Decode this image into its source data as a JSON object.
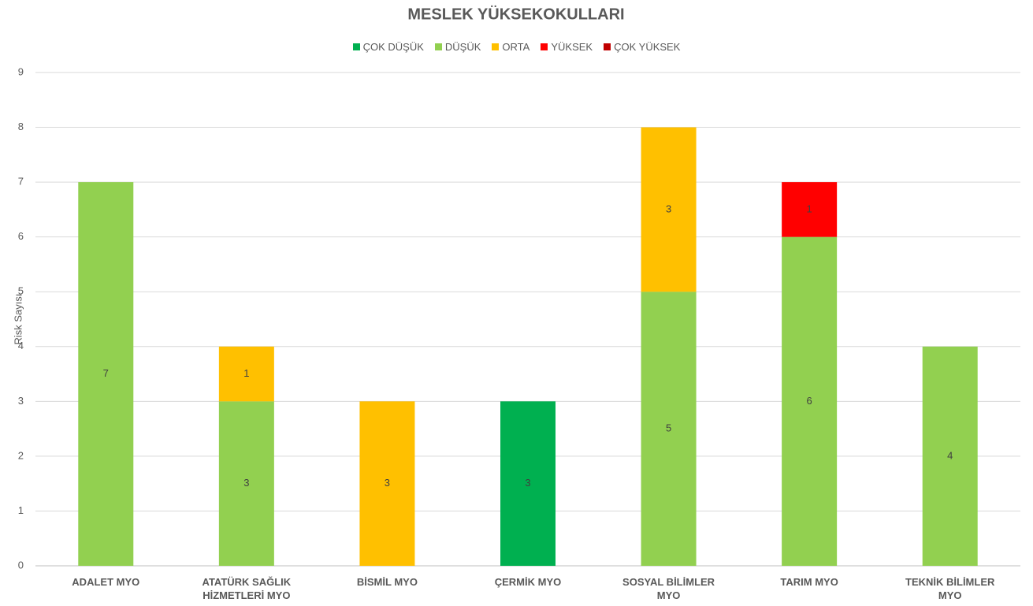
{
  "chart_data": {
    "type": "stacked_bar",
    "title": "MESLEK YÜKSEKOKULLARI",
    "y_label": "Risk Sayısı",
    "categories": [
      "ADALET MYO",
      "ATATÜRK SAĞLIK HİZMETLERİ MYO",
      "BİSMİL MYO",
      "ÇERMİK MYO",
      "SOSYAL BİLİMLER MYO",
      "TARIM MYO",
      "TEKNİK BİLİMLER MYO"
    ],
    "series": [
      {
        "name": "ÇOK DÜŞÜK",
        "color": "#00b050",
        "values": [
          null,
          null,
          null,
          3,
          null,
          null,
          null
        ]
      },
      {
        "name": "DÜŞÜK",
        "color": "#92d050",
        "values": [
          7,
          3,
          null,
          null,
          5,
          6,
          4
        ]
      },
      {
        "name": "ORTA",
        "color": "#ffc000",
        "values": [
          null,
          1,
          3,
          null,
          3,
          null,
          null
        ]
      },
      {
        "name": "YÜKSEK",
        "color": "#ff0000",
        "values": [
          null,
          null,
          null,
          null,
          null,
          1,
          null
        ]
      },
      {
        "name": "ÇOK YÜKSEK",
        "color": "#c00000",
        "values": [
          null,
          null,
          null,
          null,
          null,
          null,
          null
        ]
      }
    ],
    "ylim": [
      0,
      9
    ],
    "yticks": [
      0,
      1,
      2,
      3,
      4,
      5,
      6,
      7,
      8,
      9
    ],
    "grid": true,
    "legend": "top"
  }
}
